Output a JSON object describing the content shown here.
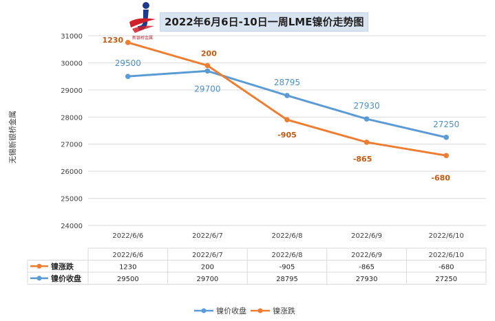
{
  "header": {
    "title": "2022年6月6日-10日一周LME镍价走势图",
    "logo_text": "新银桥金属",
    "logo_icon": "xinyinqiao-logo-icon"
  },
  "colors": {
    "price": "#5b9bd5",
    "change": "#ed7d31",
    "price_label": "#4a90c8",
    "change_label": "#c45a11",
    "grid": "#d9d9d9",
    "axis_text": "#404040"
  },
  "chart_data": {
    "type": "line",
    "title": "2022年6月6日-10日一周LME镍价走势图",
    "ylabel": "无锡新银桥金属",
    "xlabel": "",
    "ylim": [
      24000,
      31000
    ],
    "y_ticks": [
      24000,
      25000,
      26000,
      27000,
      28000,
      29000,
      30000,
      31000
    ],
    "grid": true,
    "legend_position": "bottom",
    "categories": [
      "2022/6/6",
      "2022/6/7",
      "2022/6/8",
      "2022/6/9",
      "2022/6/10"
    ],
    "series": [
      {
        "name": "镍价收盘",
        "values": [
          29500,
          29700,
          28795,
          27930,
          27250
        ],
        "labels": [
          "29500",
          "29700",
          "28795",
          "27930",
          "27250"
        ],
        "color": "#5b9bd5"
      },
      {
        "name": "镍涨跌",
        "values": [
          30750,
          29900,
          27900,
          27070,
          26580
        ],
        "labels": [
          "1230",
          "200",
          "-905",
          "-865",
          "-680"
        ],
        "color": "#ed7d31"
      }
    ],
    "table": {
      "rows": [
        {
          "name": "镍涨跌",
          "values": [
            "1230",
            "200",
            "-905",
            "-865",
            "-680"
          ]
        },
        {
          "name": "镍价收盘",
          "values": [
            "29500",
            "29700",
            "28795",
            "27930",
            "27250"
          ]
        }
      ]
    }
  }
}
